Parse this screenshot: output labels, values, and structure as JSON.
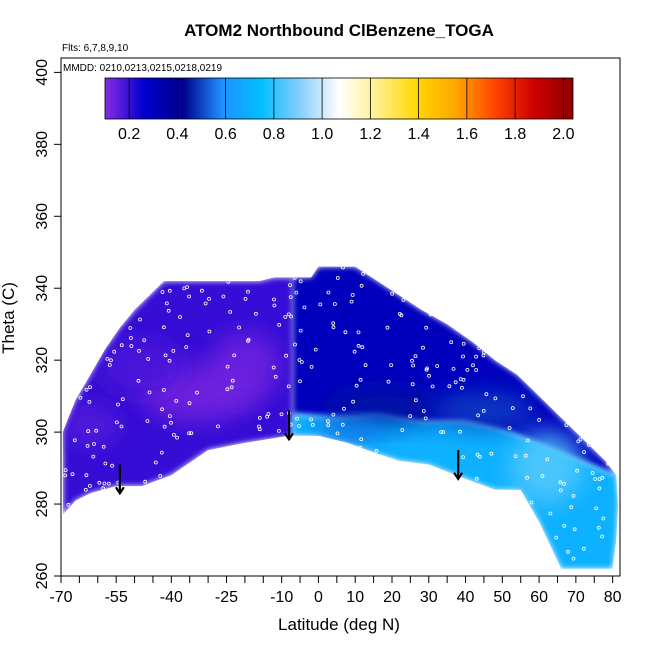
{
  "chart_data": {
    "type": "heatmap",
    "title": "ATOM2 Northbound ClBenzene_TOGA",
    "subtitle_flights": "Flts: 6,7,8,9,10",
    "subtitle_dates": "MMDD: 0210,0213,0215,0218,0219",
    "xlabel": "Latitude (deg N)",
    "ylabel": "Theta (C)",
    "xlim": [
      -70,
      82
    ],
    "ylim": [
      260,
      404
    ],
    "x_ticks": [
      -70,
      -55,
      -40,
      -25,
      -10,
      0,
      10,
      20,
      30,
      40,
      50,
      60,
      70,
      80
    ],
    "x_minor_ticks": [
      -65,
      -60,
      -50,
      -45,
      -35,
      -30,
      -20,
      -15,
      -5,
      5,
      15,
      25,
      35,
      45,
      55,
      65,
      75
    ],
    "x_tick_labels": [
      "-70",
      "-55",
      "-40",
      "-25",
      "-10",
      "0",
      "10",
      "20",
      "30",
      "40",
      "50",
      "60",
      "70",
      "80"
    ],
    "y_ticks": [
      260,
      280,
      300,
      320,
      340,
      360,
      380,
      400
    ],
    "y_tick_labels": [
      "260",
      "280",
      "300",
      "320",
      "340",
      "360",
      "380",
      "400"
    ],
    "colorbar": {
      "range": [
        0.1,
        2.04
      ],
      "ticks": [
        0.2,
        0.4,
        0.6,
        0.8,
        1.0,
        1.2,
        1.4,
        1.6,
        1.8,
        2.0
      ],
      "tick_labels": [
        "0.2",
        "0.4",
        "0.6",
        "0.8",
        "1.0",
        "1.2",
        "1.4",
        "1.6",
        "1.8",
        "2.0"
      ],
      "colors": [
        "#8a2be2",
        "#0000cd",
        "#00008b",
        "#1e90ff",
        "#00bfff",
        "#87cefa",
        "#ffffff",
        "#fff08a",
        "#ffd700",
        "#ffa500",
        "#ff4500",
        "#cd0000",
        "#8b0000"
      ]
    },
    "coverage": {
      "upper_boundary": [
        [
          -69.5,
          300
        ],
        [
          -66,
          309
        ],
        [
          -62,
          316
        ],
        [
          -58,
          323
        ],
        [
          -54,
          329
        ],
        [
          -50,
          334
        ],
        [
          -46,
          338
        ],
        [
          -42,
          342
        ],
        [
          -30,
          342
        ],
        [
          -25,
          342
        ],
        [
          -16,
          342
        ],
        [
          -12,
          343
        ],
        [
          -2,
          343
        ],
        [
          0,
          346
        ],
        [
          10,
          346
        ],
        [
          16,
          342
        ],
        [
          22,
          338
        ],
        [
          28,
          334
        ],
        [
          35,
          330
        ],
        [
          42,
          325
        ],
        [
          48,
          320
        ],
        [
          54,
          316
        ],
        [
          58,
          312
        ],
        [
          62,
          308
        ],
        [
          66,
          304
        ],
        [
          70,
          300
        ],
        [
          74,
          296
        ],
        [
          78,
          292
        ],
        [
          81,
          288
        ],
        [
          81.5,
          280
        ],
        [
          81,
          270
        ],
        [
          80,
          262
        ],
        [
          75,
          262
        ]
      ],
      "lower_boundary": [
        [
          75,
          262
        ],
        [
          66,
          262
        ],
        [
          60,
          275
        ],
        [
          55,
          284
        ],
        [
          48,
          284
        ],
        [
          40,
          287
        ],
        [
          30,
          291
        ],
        [
          22,
          292
        ],
        [
          16,
          294
        ],
        [
          8,
          297
        ],
        [
          0,
          299
        ],
        [
          -8,
          299
        ],
        [
          -20,
          297
        ],
        [
          -30,
          295
        ],
        [
          -40,
          288
        ],
        [
          -48,
          285
        ],
        [
          -55,
          285
        ],
        [
          -62,
          283
        ],
        [
          -66,
          281
        ],
        [
          -69.5,
          277
        ]
      ]
    },
    "regions": [
      {
        "name": "southern-upper",
        "value": 0.2,
        "polygon": [
          [
            -69.5,
            300
          ],
          [
            -66,
            309
          ],
          [
            -62,
            316
          ],
          [
            -58,
            323
          ],
          [
            -54,
            329
          ],
          [
            -50,
            334
          ],
          [
            -46,
            338
          ],
          [
            -42,
            342
          ],
          [
            -16,
            342
          ],
          [
            -12,
            343
          ],
          [
            -7,
            343
          ],
          [
            -7,
            299
          ],
          [
            -20,
            297
          ],
          [
            -30,
            295
          ],
          [
            -40,
            288
          ],
          [
            -48,
            285
          ],
          [
            -55,
            285
          ],
          [
            -62,
            283
          ],
          [
            -66,
            281
          ],
          [
            -69.5,
            277
          ]
        ]
      },
      {
        "name": "northern-upper",
        "value": 0.3,
        "polygon": [
          [
            -7,
            343
          ],
          [
            -2,
            343
          ],
          [
            0,
            346
          ],
          [
            10,
            346
          ],
          [
            16,
            342
          ],
          [
            22,
            338
          ],
          [
            28,
            334
          ],
          [
            35,
            330
          ],
          [
            42,
            325
          ],
          [
            48,
            320
          ],
          [
            54,
            316
          ],
          [
            58,
            312
          ],
          [
            62,
            308
          ],
          [
            66,
            304
          ],
          [
            70,
            300
          ],
          [
            74,
            296
          ],
          [
            78,
            292
          ],
          [
            81,
            288
          ],
          [
            52,
            300
          ],
          [
            40,
            303
          ],
          [
            28,
            303
          ],
          [
            16,
            305
          ],
          [
            5,
            304
          ],
          [
            -7,
            305
          ]
        ]
      },
      {
        "name": "northern-lower",
        "value": 0.7,
        "polygon": [
          [
            -7,
            305
          ],
          [
            5,
            304
          ],
          [
            16,
            305
          ],
          [
            28,
            303
          ],
          [
            40,
            303
          ],
          [
            52,
            300
          ],
          [
            81,
            288
          ],
          [
            81.5,
            280
          ],
          [
            81,
            270
          ],
          [
            80,
            262
          ],
          [
            66,
            262
          ],
          [
            60,
            275
          ],
          [
            55,
            284
          ],
          [
            48,
            284
          ],
          [
            40,
            287
          ],
          [
            30,
            291
          ],
          [
            22,
            292
          ],
          [
            16,
            294
          ],
          [
            8,
            297
          ],
          [
            0,
            299
          ],
          [
            -7,
            299
          ]
        ]
      }
    ],
    "highlight_patches": [
      {
        "value": 0.12,
        "center": [
          -33,
          311
        ],
        "radius": [
          16,
          8
        ]
      },
      {
        "value": 0.13,
        "center": [
          -20,
          318
        ],
        "radius": [
          10,
          10
        ]
      },
      {
        "value": 0.16,
        "center": [
          -62,
          302
        ],
        "radius": [
          8,
          6
        ]
      },
      {
        "value": 0.17,
        "center": [
          -48,
          318
        ],
        "radius": [
          12,
          8
        ]
      },
      {
        "value": 0.45,
        "center": [
          18,
          307
        ],
        "radius": [
          16,
          5
        ]
      },
      {
        "value": 0.5,
        "center": [
          45,
          306
        ],
        "radius": [
          14,
          5
        ]
      },
      {
        "value": 0.85,
        "center": [
          62,
          290
        ],
        "radius": [
          10,
          10
        ]
      },
      {
        "value": 0.55,
        "center": [
          8,
          300
        ],
        "radius": [
          10,
          3
        ]
      }
    ],
    "arrows": [
      {
        "lat": -54,
        "theta": 288
      },
      {
        "lat": -8,
        "theta": 303
      },
      {
        "lat": 38,
        "theta": 292
      }
    ]
  }
}
